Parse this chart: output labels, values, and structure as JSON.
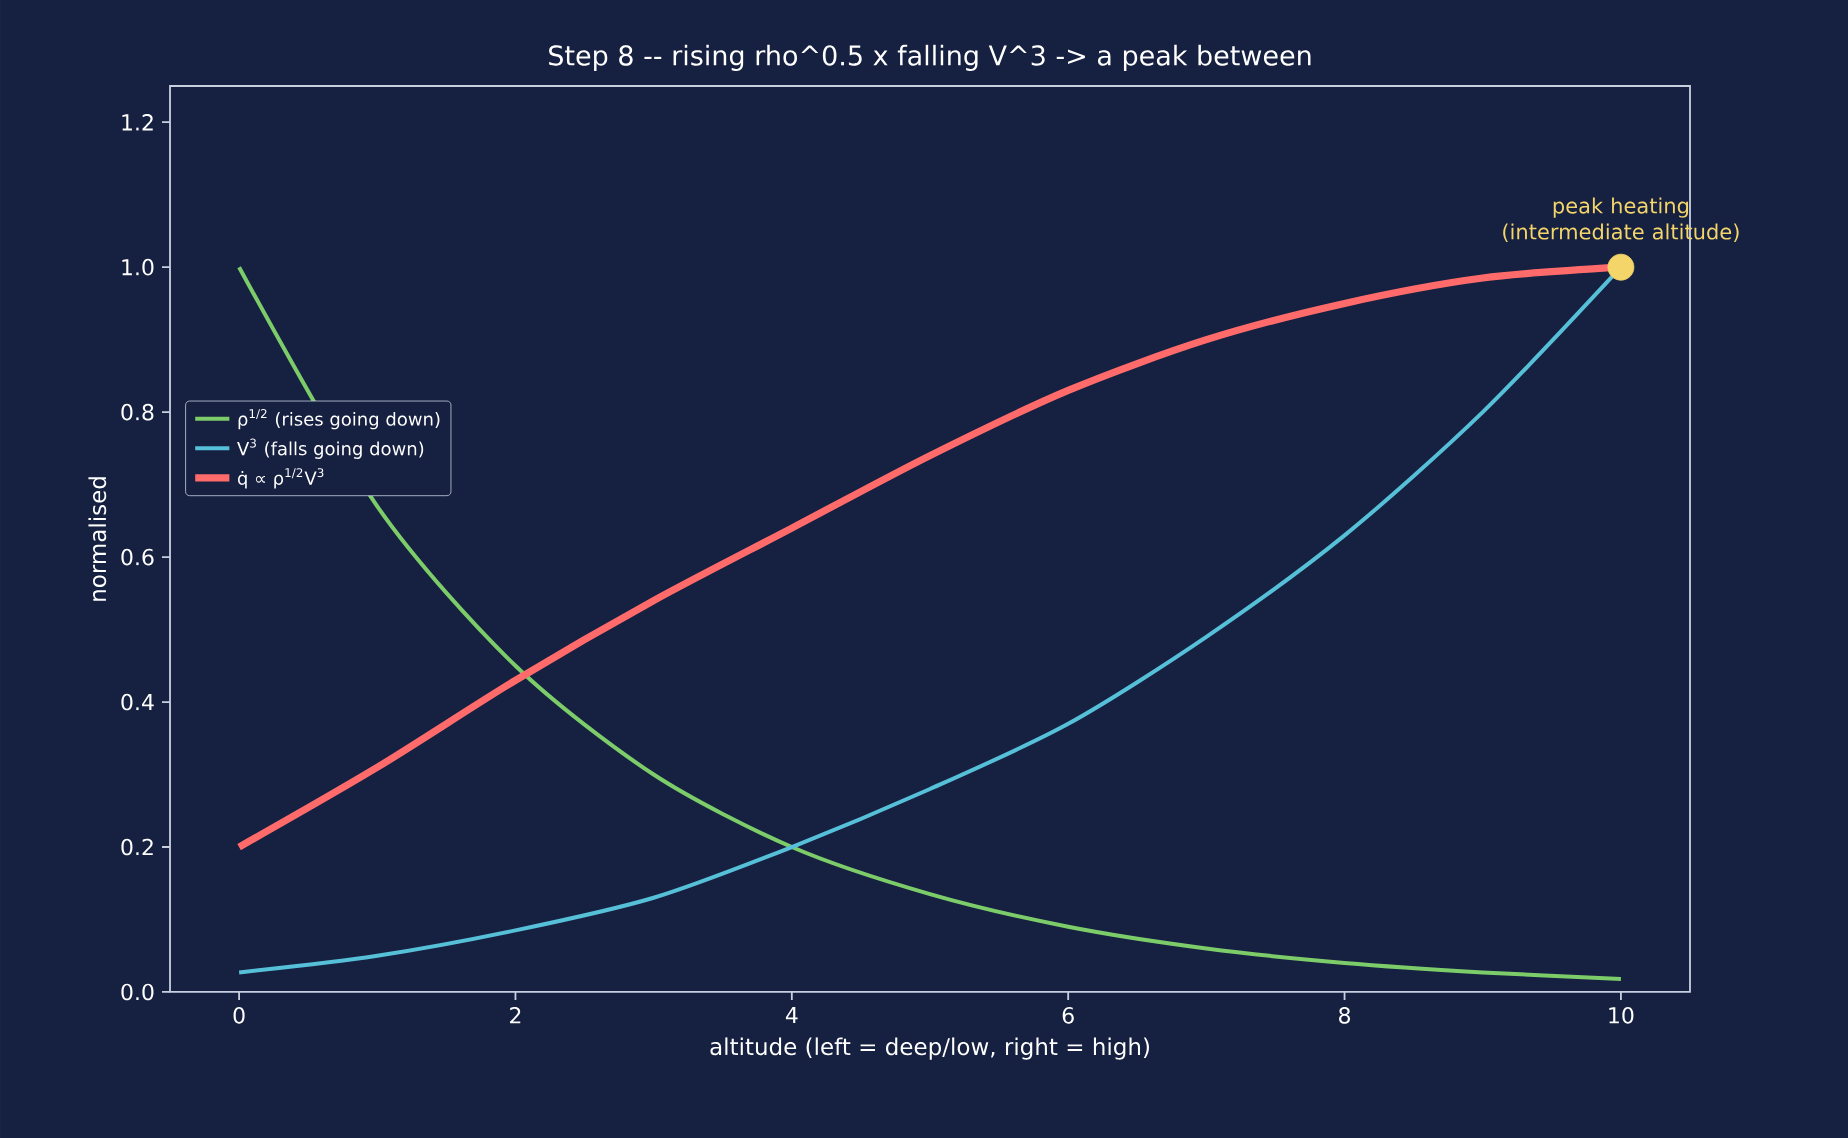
{
  "chart_data": {
    "type": "line",
    "title": "Step 8 -- rising rho^0.5 x falling V^3 -> a peak between",
    "xlabel": "altitude  (left = deep/low,  right = high)",
    "ylabel": "normalised",
    "x": [
      0,
      1,
      2,
      3,
      4,
      5,
      6,
      7,
      8,
      9,
      10
    ],
    "series": [
      {
        "name": "ρ$^{1/2}$ (rises going down)",
        "color": "#7dcc6a",
        "values": [
          1.0,
          0.67,
          0.45,
          0.3,
          0.2,
          0.135,
          0.09,
          0.06,
          0.04,
          0.027,
          0.018
        ]
      },
      {
        "name": "V$^{3}$ (falls going down)",
        "color": "#56c0d8",
        "values": [
          0.027,
          0.05,
          0.085,
          0.13,
          0.2,
          0.28,
          0.37,
          0.49,
          0.63,
          0.8,
          1.0
        ]
      },
      {
        "name": "q̇ ∝ ρ$^{1/2}$V$^{3}$",
        "color": "#ff6b6b",
        "values": [
          0.2,
          0.31,
          0.43,
          0.54,
          0.64,
          0.74,
          0.83,
          0.9,
          0.95,
          0.985,
          1.0
        ]
      },
      {
        "type": "scatter",
        "color": "#f4d56a",
        "x": [
          10
        ],
        "values": [
          1.0
        ],
        "marker": "circle"
      }
    ],
    "annotations": [
      {
        "text": "peak heating (intermediate altitude)",
        "x": 10,
        "y": 1.0
      }
    ],
    "xlim": [
      -0.5,
      10.5
    ],
    "ylim": [
      0,
      1.25
    ],
    "xticks": [
      0,
      2,
      4,
      6,
      8,
      10
    ],
    "yticks": [
      {
        "value": 0,
        "label": "0.0"
      },
      0.2,
      0.4,
      0.6,
      0.8,
      {
        "value": 1,
        "label": "1.0"
      },
      1.2
    ],
    "legend": "left",
    "grid": false
  }
}
